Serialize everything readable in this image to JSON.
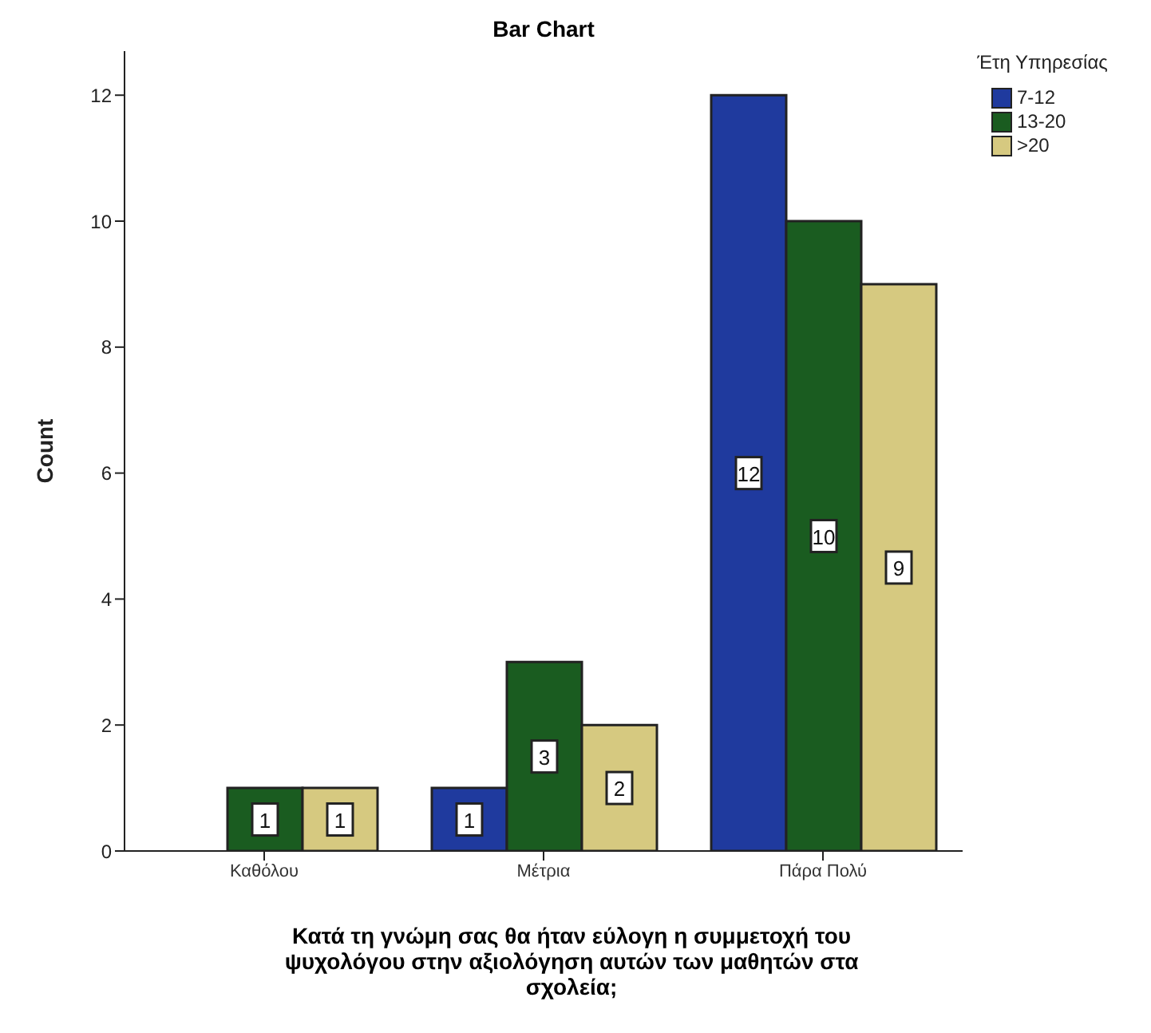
{
  "chart_data": {
    "type": "bar",
    "title": "Bar Chart",
    "xlabel": "Κατά τη γνώμη σας θα ήταν εύλογη η συμμετοχή του ψυχολόγου στην αξιολόγηση αυτών των μαθητών στα σχολεία;",
    "ylabel": "Count",
    "legend_title": "Έτη Υπηρεσίας",
    "categories": [
      "Καθόλου",
      "Μέτρια",
      "Πάρα Πολύ"
    ],
    "series": [
      {
        "name": "7-12",
        "color": "#1f3a9e",
        "values": [
          null,
          1,
          12
        ]
      },
      {
        "name": "13-20",
        "color": "#1a5c20",
        "values": [
          1,
          3,
          10
        ]
      },
      {
        "name": ">20",
        "color": "#d6c980",
        "values": [
          1,
          2,
          9
        ]
      }
    ],
    "ylim": [
      0,
      12.7
    ],
    "yticks": [
      0,
      2,
      4,
      6,
      8,
      10,
      12
    ],
    "grid": false,
    "legend": "top right",
    "data_labels": true
  }
}
